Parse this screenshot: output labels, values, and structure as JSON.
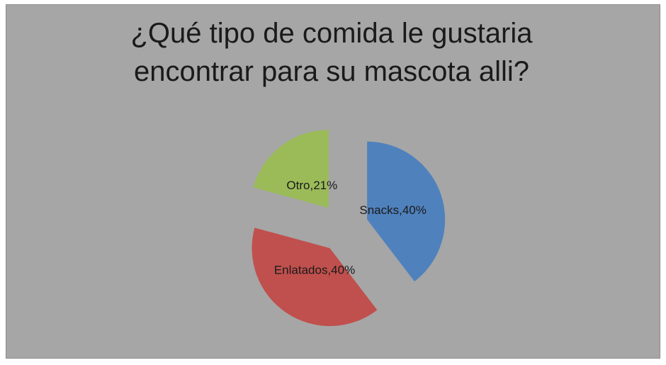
{
  "chart_data": {
    "type": "pie",
    "title": "¿Qué tipo de comida le gustaria encontrar para su mascota alli?",
    "values": [
      40,
      40,
      21
    ],
    "value_labels": [
      "Snacks,40%",
      "Enlatados,40%",
      "Otro,21%"
    ],
    "colors": [
      "#4f81bd",
      "#c0504d",
      "#9bbb59"
    ],
    "exploded": true
  }
}
